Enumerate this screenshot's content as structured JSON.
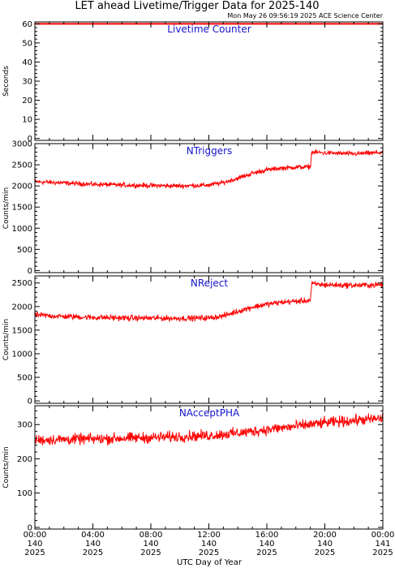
{
  "header": {
    "title": "LET ahead Livetime/Trigger Data for 2025-140",
    "timestamp": "Mon May 26 09:56:19 2025 ACE Science Center"
  },
  "xaxis": {
    "label": "UTC Day of Year",
    "ticks": [
      {
        "hours": 0,
        "time": "00:00",
        "doy": "140",
        "year": "2025"
      },
      {
        "hours": 4,
        "time": "04:00",
        "doy": "140",
        "year": "2025"
      },
      {
        "hours": 8,
        "time": "08:00",
        "doy": "140",
        "year": "2025"
      },
      {
        "hours": 12,
        "time": "12:00",
        "doy": "140",
        "year": "2025"
      },
      {
        "hours": 16,
        "time": "16:00",
        "doy": "140",
        "year": "2025"
      },
      {
        "hours": 20,
        "time": "20:00",
        "doy": "140",
        "year": "2025"
      },
      {
        "hours": 24,
        "time": "00:00",
        "doy": "141",
        "year": "2025"
      }
    ]
  },
  "colors": {
    "line": "#ff0000",
    "panel_title": "#1414cc",
    "axis": "#000000"
  },
  "chart_data": [
    {
      "type": "line",
      "title": "Livetime Counter",
      "ylabel": "Seconds",
      "ylim": [
        -1,
        61
      ],
      "yticks": [
        0,
        10,
        20,
        30,
        40,
        50,
        60
      ],
      "xlim": [
        0,
        24
      ],
      "series": [
        {
          "x": [
            0,
            24
          ],
          "values": [
            60,
            60
          ],
          "noise": 0
        }
      ]
    },
    {
      "type": "line",
      "title": "NTriggers",
      "ylabel": "Counts/min",
      "ylim": [
        -50,
        3000
      ],
      "yticks": [
        0,
        500,
        1000,
        1500,
        2000,
        2500,
        3000
      ],
      "xlim": [
        0,
        24
      ],
      "series": [
        {
          "x": [
            0,
            2,
            4,
            6,
            8,
            10,
            12,
            13,
            14,
            15,
            16,
            17,
            18,
            19,
            19.1,
            20,
            22,
            24
          ],
          "values": [
            2100,
            2070,
            2040,
            2020,
            2010,
            2000,
            2020,
            2080,
            2180,
            2300,
            2380,
            2420,
            2440,
            2450,
            2800,
            2780,
            2760,
            2790
          ],
          "noise": 45
        }
      ]
    },
    {
      "type": "line",
      "title": "NReject",
      "ylabel": "Counts/min",
      "ylim": [
        -50,
        2650
      ],
      "yticks": [
        0,
        500,
        1000,
        1500,
        2000,
        2500
      ],
      "xlim": [
        0,
        24
      ],
      "series": [
        {
          "x": [
            0,
            2,
            4,
            6,
            8,
            10,
            12,
            13,
            14,
            15,
            16,
            17,
            18,
            19,
            19.1,
            20,
            22,
            24
          ],
          "values": [
            1820,
            1790,
            1770,
            1760,
            1755,
            1750,
            1760,
            1800,
            1900,
            1990,
            2050,
            2090,
            2110,
            2130,
            2480,
            2460,
            2450,
            2460
          ],
          "noise": 50
        }
      ]
    },
    {
      "type": "line",
      "title": "NAcceptPHA",
      "ylabel": "Counts/min",
      "ylim": [
        -5,
        355
      ],
      "yticks": [
        0,
        100,
        200,
        300
      ],
      "xlim": [
        0,
        24
      ],
      "series": [
        {
          "x": [
            0,
            4,
            8,
            12,
            14,
            16,
            18,
            20,
            22,
            24
          ],
          "values": [
            255,
            258,
            262,
            268,
            275,
            285,
            295,
            305,
            312,
            318
          ],
          "noise": 13
        }
      ]
    }
  ]
}
